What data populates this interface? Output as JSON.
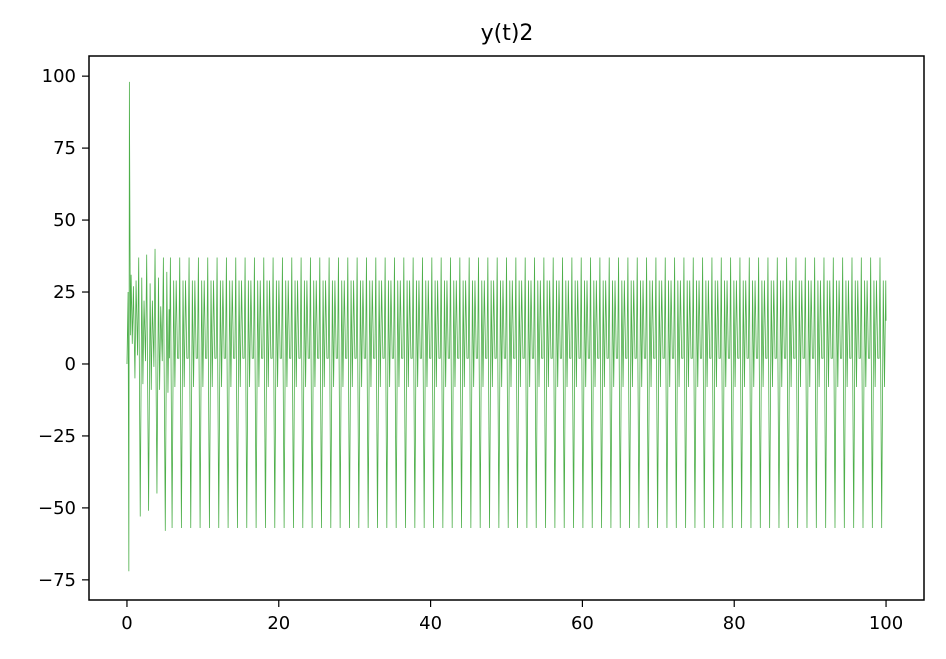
{
  "chart_data": {
    "type": "line",
    "title": "y(t)2",
    "xlabel": "",
    "ylabel": "",
    "xlim": [
      -5,
      105
    ],
    "ylim": [
      -82,
      107
    ],
    "x_ticks": [
      0,
      20,
      40,
      60,
      80,
      100
    ],
    "y_ticks": [
      100,
      75,
      50,
      25,
      0,
      -25,
      -50,
      -75
    ],
    "x_tick_labels": [
      "0",
      "20",
      "40",
      "60",
      "80",
      "100"
    ],
    "y_tick_labels": [
      "100",
      "75",
      "50",
      "25",
      "0",
      "−25",
      "−50",
      "−75"
    ],
    "grid": false,
    "legend": "none",
    "line_color": "#4daf4a",
    "series": [
      {
        "x_start": 0,
        "x_end": 100,
        "transient_points": [
          [
            0.0,
            0
          ],
          [
            0.15,
            25
          ],
          [
            0.25,
            -72
          ],
          [
            0.32,
            98
          ],
          [
            0.45,
            10
          ],
          [
            0.55,
            31
          ],
          [
            0.7,
            7
          ],
          [
            0.85,
            27
          ],
          [
            1.05,
            -5
          ],
          [
            1.2,
            29
          ],
          [
            1.4,
            3
          ],
          [
            1.55,
            37
          ],
          [
            1.75,
            -53
          ],
          [
            1.95,
            30
          ],
          [
            2.1,
            -7
          ],
          [
            2.25,
            22
          ],
          [
            2.45,
            1
          ],
          [
            2.6,
            38
          ],
          [
            2.85,
            -51
          ],
          [
            3.05,
            28
          ],
          [
            3.2,
            -9
          ],
          [
            3.35,
            22
          ],
          [
            3.55,
            -1
          ],
          [
            3.7,
            40
          ],
          [
            3.95,
            -45
          ],
          [
            4.15,
            30
          ],
          [
            4.3,
            -9
          ],
          [
            4.45,
            20
          ],
          [
            4.65,
            1
          ],
          [
            4.8,
            37
          ],
          [
            5.05,
            -58
          ],
          [
            5.25,
            32
          ],
          [
            5.4,
            -10
          ],
          [
            5.55,
            19
          ]
        ],
        "steady_cycle": {
          "start": 5.6,
          "period": 1.23,
          "min": -57,
          "max": 37,
          "shoulder_high": 29,
          "shoulder_low": -8,
          "base": 2
        },
        "end_value": 15
      }
    ]
  }
}
